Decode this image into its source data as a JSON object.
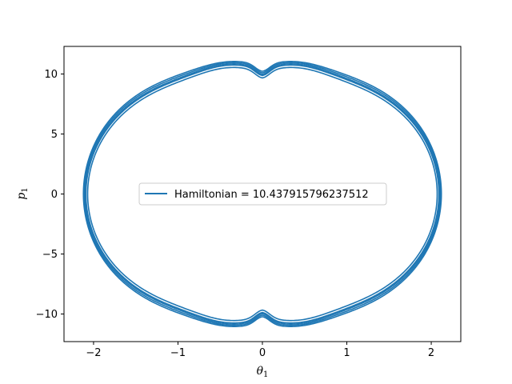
{
  "chart_data": {
    "type": "line",
    "title": "",
    "xlabel": {
      "base": "θ",
      "sub": "1"
    },
    "ylabel": {
      "base": "p",
      "sub": "1"
    },
    "xlim": [
      -2.35,
      2.35
    ],
    "ylim": [
      -12.3,
      12.3
    ],
    "xticks": [
      -2,
      -1,
      0,
      1,
      2
    ],
    "xtick_labels": [
      "−2",
      "−1",
      "0",
      "1",
      "2"
    ],
    "yticks": [
      -10,
      -5,
      0,
      5,
      10
    ],
    "ytick_labels": [
      "−10",
      "−5",
      "0",
      "5",
      "10"
    ],
    "grid": false,
    "legend": {
      "placement": "center"
    },
    "series": [
      {
        "name": "Hamiltonian = 10.437915796237512",
        "color": "#1f77b4",
        "loops": [
          {
            "theta_amp": 2.07,
            "p_amp": 10.0,
            "p_peak": 10.6
          },
          {
            "theta_amp": 2.09,
            "p_amp": 10.2,
            "p_peak": 10.8
          },
          {
            "theta_amp": 2.11,
            "p_amp": 10.45,
            "p_peak": 11.0
          },
          {
            "theta_amp": 2.12,
            "p_amp": 10.6,
            "p_peak": 11.1
          },
          {
            "theta_amp": 2.1,
            "p_amp": 10.3,
            "p_peak": 10.9
          }
        ]
      }
    ]
  }
}
